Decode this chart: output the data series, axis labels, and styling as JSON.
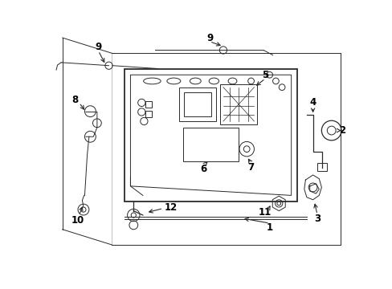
{
  "bg_color": "#ffffff",
  "line_color": "#2a2a2a",
  "label_color": "#000000",
  "lw_main": 1.3,
  "lw_thin": 0.7,
  "lw_med": 0.9,
  "fontsize": 8.5
}
